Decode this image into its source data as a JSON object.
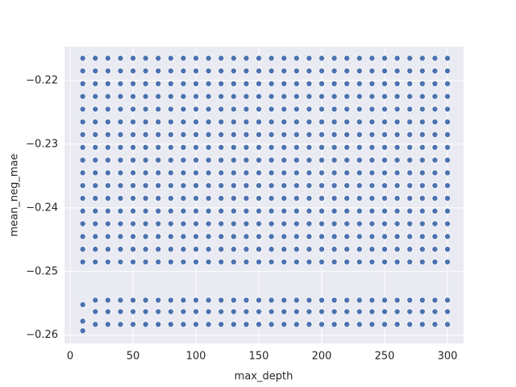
{
  "chart_data": {
    "type": "scatter",
    "x_label": "max_depth",
    "y_label": "mean_neg_mae",
    "color": "#4c72b0",
    "grid": true,
    "xlim": [
      -4.5,
      312.8
    ],
    "ylim": [
      -0.2613,
      -0.2147
    ],
    "xticks": [
      0,
      50,
      100,
      150,
      200,
      250,
      300
    ],
    "yticks": [
      {
        "value": -0.26,
        "label": "−0.26"
      },
      {
        "value": -0.25,
        "label": "−0.25"
      },
      {
        "value": -0.24,
        "label": "−0.24"
      },
      {
        "value": -0.23,
        "label": "−0.23"
      },
      {
        "value": -0.22,
        "label": "−0.22"
      }
    ],
    "x": [
      10,
      10,
      10,
      10,
      10,
      10,
      10,
      10,
      10,
      10,
      10,
      10,
      10,
      10,
      10,
      10,
      10,
      10,
      10,
      10,
      20,
      20,
      20,
      20,
      20,
      20,
      20,
      20,
      20,
      20,
      20,
      20,
      20,
      20,
      20,
      20,
      20,
      20,
      20,
      20,
      30,
      30,
      30,
      30,
      30,
      30,
      30,
      30,
      30,
      30,
      30,
      30,
      30,
      30,
      30,
      30,
      30,
      30,
      30,
      30,
      40,
      40,
      40,
      40,
      40,
      40,
      40,
      40,
      40,
      40,
      40,
      40,
      40,
      40,
      40,
      40,
      40,
      40,
      40,
      40,
      50,
      50,
      50,
      50,
      50,
      50,
      50,
      50,
      50,
      50,
      50,
      50,
      50,
      50,
      50,
      50,
      50,
      50,
      50,
      50,
      60,
      60,
      60,
      60,
      60,
      60,
      60,
      60,
      60,
      60,
      60,
      60,
      60,
      60,
      60,
      60,
      60,
      60,
      60,
      60,
      70,
      70,
      70,
      70,
      70,
      70,
      70,
      70,
      70,
      70,
      70,
      70,
      70,
      70,
      70,
      70,
      70,
      70,
      70,
      70,
      80,
      80,
      80,
      80,
      80,
      80,
      80,
      80,
      80,
      80,
      80,
      80,
      80,
      80,
      80,
      80,
      80,
      80,
      80,
      80,
      90,
      90,
      90,
      90,
      90,
      90,
      90,
      90,
      90,
      90,
      90,
      90,
      90,
      90,
      90,
      90,
      90,
      90,
      90,
      90,
      100,
      100,
      100,
      100,
      100,
      100,
      100,
      100,
      100,
      100,
      100,
      100,
      100,
      100,
      100,
      100,
      100,
      100,
      100,
      100,
      110,
      110,
      110,
      110,
      110,
      110,
      110,
      110,
      110,
      110,
      110,
      110,
      110,
      110,
      110,
      110,
      110,
      110,
      110,
      110,
      120,
      120,
      120,
      120,
      120,
      120,
      120,
      120,
      120,
      120,
      120,
      120,
      120,
      120,
      120,
      120,
      120,
      120,
      120,
      120,
      130,
      130,
      130,
      130,
      130,
      130,
      130,
      130,
      130,
      130,
      130,
      130,
      130,
      130,
      130,
      130,
      130,
      130,
      130,
      130,
      140,
      140,
      140,
      140,
      140,
      140,
      140,
      140,
      140,
      140,
      140,
      140,
      140,
      140,
      140,
      140,
      140,
      140,
      140,
      140,
      150,
      150,
      150,
      150,
      150,
      150,
      150,
      150,
      150,
      150,
      150,
      150,
      150,
      150,
      150,
      150,
      150,
      150,
      150,
      150,
      160,
      160,
      160,
      160,
      160,
      160,
      160,
      160,
      160,
      160,
      160,
      160,
      160,
      160,
      160,
      160,
      160,
      160,
      160,
      160,
      170,
      170,
      170,
      170,
      170,
      170,
      170,
      170,
      170,
      170,
      170,
      170,
      170,
      170,
      170,
      170,
      170,
      170,
      170,
      170,
      180,
      180,
      180,
      180,
      180,
      180,
      180,
      180,
      180,
      180,
      180,
      180,
      180,
      180,
      180,
      180,
      180,
      180,
      180,
      180,
      190,
      190,
      190,
      190,
      190,
      190,
      190,
      190,
      190,
      190,
      190,
      190,
      190,
      190,
      190,
      190,
      190,
      190,
      190,
      190,
      200,
      200,
      200,
      200,
      200,
      200,
      200,
      200,
      200,
      200,
      200,
      200,
      200,
      200,
      200,
      200,
      200,
      200,
      200,
      200,
      210,
      210,
      210,
      210,
      210,
      210,
      210,
      210,
      210,
      210,
      210,
      210,
      210,
      210,
      210,
      210,
      210,
      210,
      210,
      210,
      220,
      220,
      220,
      220,
      220,
      220,
      220,
      220,
      220,
      220,
      220,
      220,
      220,
      220,
      220,
      220,
      220,
      220,
      220,
      220,
      230,
      230,
      230,
      230,
      230,
      230,
      230,
      230,
      230,
      230,
      230,
      230,
      230,
      230,
      230,
      230,
      230,
      230,
      230,
      230,
      240,
      240,
      240,
      240,
      240,
      240,
      240,
      240,
      240,
      240,
      240,
      240,
      240,
      240,
      240,
      240,
      240,
      240,
      240,
      240,
      250,
      250,
      250,
      250,
      250,
      250,
      250,
      250,
      250,
      250,
      250,
      250,
      250,
      250,
      250,
      250,
      250,
      250,
      250,
      250,
      260,
      260,
      260,
      260,
      260,
      260,
      260,
      260,
      260,
      260,
      260,
      260,
      260,
      260,
      260,
      260,
      260,
      260,
      260,
      260,
      270,
      270,
      270,
      270,
      270,
      270,
      270,
      270,
      270,
      270,
      270,
      270,
      270,
      270,
      270,
      270,
      270,
      270,
      270,
      270,
      280,
      280,
      280,
      280,
      280,
      280,
      280,
      280,
      280,
      280,
      280,
      280,
      280,
      280,
      280,
      280,
      280,
      280,
      280,
      280,
      290,
      290,
      290,
      290,
      290,
      290,
      290,
      290,
      290,
      290,
      290,
      290,
      290,
      290,
      290,
      290,
      290,
      290,
      290,
      290,
      300,
      300,
      300,
      300,
      300,
      300,
      300,
      300,
      300,
      300,
      300,
      300,
      300,
      300,
      300,
      300,
      300,
      300,
      300,
      300
    ],
    "y": [
      -0.2165,
      -0.2185,
      -0.2205,
      -0.2225,
      -0.2245,
      -0.2265,
      -0.2285,
      -0.2305,
      -0.2325,
      -0.2345,
      -0.2365,
      -0.2385,
      -0.2405,
      -0.2425,
      -0.2445,
      -0.2465,
      -0.2485,
      -0.2552,
      -0.2578,
      -0.2593,
      -0.2165,
      -0.2185,
      -0.2205,
      -0.2225,
      -0.2245,
      -0.2265,
      -0.2285,
      -0.2305,
      -0.2325,
      -0.2345,
      -0.2365,
      -0.2385,
      -0.2405,
      -0.2425,
      -0.2445,
      -0.2465,
      -0.2485,
      -0.2545,
      -0.2563,
      -0.2583,
      -0.2165,
      -0.2185,
      -0.2205,
      -0.2225,
      -0.2245,
      -0.2265,
      -0.2285,
      -0.2305,
      -0.2325,
      -0.2345,
      -0.2365,
      -0.2385,
      -0.2405,
      -0.2425,
      -0.2445,
      -0.2465,
      -0.2485,
      -0.2545,
      -0.2563,
      -0.2583,
      -0.2165,
      -0.2185,
      -0.2205,
      -0.2225,
      -0.2245,
      -0.2265,
      -0.2285,
      -0.2305,
      -0.2325,
      -0.2345,
      -0.2365,
      -0.2385,
      -0.2405,
      -0.2425,
      -0.2445,
      -0.2465,
      -0.2485,
      -0.2545,
      -0.2563,
      -0.2583,
      -0.2165,
      -0.2185,
      -0.2205,
      -0.2225,
      -0.2245,
      -0.2265,
      -0.2285,
      -0.2305,
      -0.2325,
      -0.2345,
      -0.2365,
      -0.2385,
      -0.2405,
      -0.2425,
      -0.2445,
      -0.2465,
      -0.2485,
      -0.2545,
      -0.2563,
      -0.2583,
      -0.2165,
      -0.2185,
      -0.2205,
      -0.2225,
      -0.2245,
      -0.2265,
      -0.2285,
      -0.2305,
      -0.2325,
      -0.2345,
      -0.2365,
      -0.2385,
      -0.2405,
      -0.2425,
      -0.2445,
      -0.2465,
      -0.2485,
      -0.2545,
      -0.2563,
      -0.2583,
      -0.2165,
      -0.2185,
      -0.2205,
      -0.2225,
      -0.2245,
      -0.2265,
      -0.2285,
      -0.2305,
      -0.2325,
      -0.2345,
      -0.2365,
      -0.2385,
      -0.2405,
      -0.2425,
      -0.2445,
      -0.2465,
      -0.2485,
      -0.2545,
      -0.2563,
      -0.2583,
      -0.2165,
      -0.2185,
      -0.2205,
      -0.2225,
      -0.2245,
      -0.2265,
      -0.2285,
      -0.2305,
      -0.2325,
      -0.2345,
      -0.2365,
      -0.2385,
      -0.2405,
      -0.2425,
      -0.2445,
      -0.2465,
      -0.2485,
      -0.2545,
      -0.2563,
      -0.2583,
      -0.2165,
      -0.2185,
      -0.2205,
      -0.2225,
      -0.2245,
      -0.2265,
      -0.2285,
      -0.2305,
      -0.2325,
      -0.2345,
      -0.2365,
      -0.2385,
      -0.2405,
      -0.2425,
      -0.2445,
      -0.2465,
      -0.2485,
      -0.2545,
      -0.2563,
      -0.2583,
      -0.2165,
      -0.2185,
      -0.2205,
      -0.2225,
      -0.2245,
      -0.2265,
      -0.2285,
      -0.2305,
      -0.2325,
      -0.2345,
      -0.2365,
      -0.2385,
      -0.2405,
      -0.2425,
      -0.2445,
      -0.2465,
      -0.2485,
      -0.2545,
      -0.2563,
      -0.2583,
      -0.2165,
      -0.2185,
      -0.2205,
      -0.2225,
      -0.2245,
      -0.2265,
      -0.2285,
      -0.2305,
      -0.2325,
      -0.2345,
      -0.2365,
      -0.2385,
      -0.2405,
      -0.2425,
      -0.2445,
      -0.2465,
      -0.2485,
      -0.2545,
      -0.2563,
      -0.2583,
      -0.2165,
      -0.2185,
      -0.2205,
      -0.2225,
      -0.2245,
      -0.2265,
      -0.2285,
      -0.2305,
      -0.2325,
      -0.2345,
      -0.2365,
      -0.2385,
      -0.2405,
      -0.2425,
      -0.2445,
      -0.2465,
      -0.2485,
      -0.2545,
      -0.2563,
      -0.2583,
      -0.2165,
      -0.2185,
      -0.2205,
      -0.2225,
      -0.2245,
      -0.2265,
      -0.2285,
      -0.2305,
      -0.2325,
      -0.2345,
      -0.2365,
      -0.2385,
      -0.2405,
      -0.2425,
      -0.2445,
      -0.2465,
      -0.2485,
      -0.2545,
      -0.2563,
      -0.2583,
      -0.2165,
      -0.2185,
      -0.2205,
      -0.2225,
      -0.2245,
      -0.2265,
      -0.2285,
      -0.2305,
      -0.2325,
      -0.2345,
      -0.2365,
      -0.2385,
      -0.2405,
      -0.2425,
      -0.2445,
      -0.2465,
      -0.2485,
      -0.2545,
      -0.2563,
      -0.2583,
      -0.2165,
      -0.2185,
      -0.2205,
      -0.2225,
      -0.2245,
      -0.2265,
      -0.2285,
      -0.2305,
      -0.2325,
      -0.2345,
      -0.2365,
      -0.2385,
      -0.2405,
      -0.2425,
      -0.2445,
      -0.2465,
      -0.2485,
      -0.2545,
      -0.2563,
      -0.2583,
      -0.2165,
      -0.2185,
      -0.2205,
      -0.2225,
      -0.2245,
      -0.2265,
      -0.2285,
      -0.2305,
      -0.2325,
      -0.2345,
      -0.2365,
      -0.2385,
      -0.2405,
      -0.2425,
      -0.2445,
      -0.2465,
      -0.2485,
      -0.2545,
      -0.2563,
      -0.2583,
      -0.2165,
      -0.2185,
      -0.2205,
      -0.2225,
      -0.2245,
      -0.2265,
      -0.2285,
      -0.2305,
      -0.2325,
      -0.2345,
      -0.2365,
      -0.2385,
      -0.2405,
      -0.2425,
      -0.2445,
      -0.2465,
      -0.2485,
      -0.2545,
      -0.2563,
      -0.2583,
      -0.2165,
      -0.2185,
      -0.2205,
      -0.2225,
      -0.2245,
      -0.2265,
      -0.2285,
      -0.2305,
      -0.2325,
      -0.2345,
      -0.2365,
      -0.2385,
      -0.2405,
      -0.2425,
      -0.2445,
      -0.2465,
      -0.2485,
      -0.2545,
      -0.2563,
      -0.2583,
      -0.2165,
      -0.2185,
      -0.2205,
      -0.2225,
      -0.2245,
      -0.2265,
      -0.2285,
      -0.2305,
      -0.2325,
      -0.2345,
      -0.2365,
      -0.2385,
      -0.2405,
      -0.2425,
      -0.2445,
      -0.2465,
      -0.2485,
      -0.2545,
      -0.2563,
      -0.2583,
      -0.2165,
      -0.2185,
      -0.2205,
      -0.2225,
      -0.2245,
      -0.2265,
      -0.2285,
      -0.2305,
      -0.2325,
      -0.2345,
      -0.2365,
      -0.2385,
      -0.2405,
      -0.2425,
      -0.2445,
      -0.2465,
      -0.2485,
      -0.2545,
      -0.2563,
      -0.2583,
      -0.2165,
      -0.2185,
      -0.2205,
      -0.2225,
      -0.2245,
      -0.2265,
      -0.2285,
      -0.2305,
      -0.2325,
      -0.2345,
      -0.2365,
      -0.2385,
      -0.2405,
      -0.2425,
      -0.2445,
      -0.2465,
      -0.2485,
      -0.2545,
      -0.2563,
      -0.2583,
      -0.2165,
      -0.2185,
      -0.2205,
      -0.2225,
      -0.2245,
      -0.2265,
      -0.2285,
      -0.2305,
      -0.2325,
      -0.2345,
      -0.2365,
      -0.2385,
      -0.2405,
      -0.2425,
      -0.2445,
      -0.2465,
      -0.2485,
      -0.2545,
      -0.2563,
      -0.2583,
      -0.2165,
      -0.2185,
      -0.2205,
      -0.2225,
      -0.2245,
      -0.2265,
      -0.2285,
      -0.2305,
      -0.2325,
      -0.2345,
      -0.2365,
      -0.2385,
      -0.2405,
      -0.2425,
      -0.2445,
      -0.2465,
      -0.2485,
      -0.2545,
      -0.2563,
      -0.2583,
      -0.2165,
      -0.2185,
      -0.2205,
      -0.2225,
      -0.2245,
      -0.2265,
      -0.2285,
      -0.2305,
      -0.2325,
      -0.2345,
      -0.2365,
      -0.2385,
      -0.2405,
      -0.2425,
      -0.2445,
      -0.2465,
      -0.2485,
      -0.2545,
      -0.2563,
      -0.2583,
      -0.2165,
      -0.2185,
      -0.2205,
      -0.2225,
      -0.2245,
      -0.2265,
      -0.2285,
      -0.2305,
      -0.2325,
      -0.2345,
      -0.2365,
      -0.2385,
      -0.2405,
      -0.2425,
      -0.2445,
      -0.2465,
      -0.2485,
      -0.2545,
      -0.2563,
      -0.2583,
      -0.2165,
      -0.2185,
      -0.2205,
      -0.2225,
      -0.2245,
      -0.2265,
      -0.2285,
      -0.2305,
      -0.2325,
      -0.2345,
      -0.2365,
      -0.2385,
      -0.2405,
      -0.2425,
      -0.2445,
      -0.2465,
      -0.2485,
      -0.2545,
      -0.2563,
      -0.2583,
      -0.2165,
      -0.2185,
      -0.2205,
      -0.2225,
      -0.2245,
      -0.2265,
      -0.2285,
      -0.2305,
      -0.2325,
      -0.2345,
      -0.2365,
      -0.2385,
      -0.2405,
      -0.2425,
      -0.2445,
      -0.2465,
      -0.2485,
      -0.2545,
      -0.2563,
      -0.2583,
      -0.2165,
      -0.2185,
      -0.2205,
      -0.2225,
      -0.2245,
      -0.2265,
      -0.2285,
      -0.2305,
      -0.2325,
      -0.2345,
      -0.2365,
      -0.2385,
      -0.2405,
      -0.2425,
      -0.2445,
      -0.2465,
      -0.2485,
      -0.2545,
      -0.2563,
      -0.2583,
      -0.2165,
      -0.2185,
      -0.2205,
      -0.2225,
      -0.2245,
      -0.2265,
      -0.2285,
      -0.2305,
      -0.2325,
      -0.2345,
      -0.2365,
      -0.2385,
      -0.2405,
      -0.2425,
      -0.2445,
      -0.2465,
      -0.2485,
      -0.2545,
      -0.2563,
      -0.2583,
      -0.2165,
      -0.2185,
      -0.2205,
      -0.2225,
      -0.2245,
      -0.2265,
      -0.2285,
      -0.2305,
      -0.2325,
      -0.2345,
      -0.2365,
      -0.2385,
      -0.2405,
      -0.2425,
      -0.2445,
      -0.2465,
      -0.2485,
      -0.2545,
      -0.2563,
      -0.2583
    ]
  }
}
